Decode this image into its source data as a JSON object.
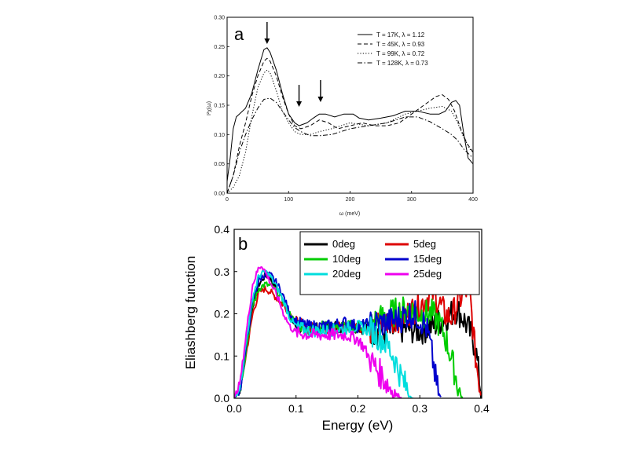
{
  "chart_data": [
    {
      "type": "line",
      "panel_label": "a",
      "xlabel": "ω (meV)",
      "ylabel": "I²χ(ω)",
      "xlim": [
        0,
        400
      ],
      "ylim": [
        0,
        0.3
      ],
      "xticks": [
        0,
        100,
        200,
        300,
        400
      ],
      "yticks": [
        0.0,
        0.05,
        0.1,
        0.15,
        0.2,
        0.25,
        0.3
      ],
      "legend_position": "top-right",
      "arrows_at_x": [
        65,
        117,
        152
      ],
      "series": [
        {
          "name": "T = 17K, λ = 1.12",
          "style": "solid",
          "x": [
            0,
            5,
            10,
            15,
            20,
            30,
            40,
            50,
            60,
            65,
            70,
            80,
            90,
            100,
            110,
            117,
            130,
            140,
            150,
            160,
            175,
            190,
            205,
            215,
            230,
            250,
            270,
            290,
            310,
            330,
            345,
            355,
            365,
            372,
            378,
            385,
            392,
            400
          ],
          "y": [
            0.02,
            0.06,
            0.11,
            0.13,
            0.135,
            0.145,
            0.17,
            0.21,
            0.245,
            0.248,
            0.24,
            0.21,
            0.17,
            0.135,
            0.12,
            0.115,
            0.12,
            0.128,
            0.135,
            0.135,
            0.13,
            0.135,
            0.135,
            0.128,
            0.125,
            0.128,
            0.132,
            0.14,
            0.14,
            0.135,
            0.135,
            0.14,
            0.155,
            0.158,
            0.15,
            0.1,
            0.06,
            0.05
          ]
        },
        {
          "name": "T = 45K, λ = 0.93",
          "style": "dashed",
          "x": [
            0,
            10,
            20,
            30,
            40,
            50,
            60,
            65,
            70,
            80,
            90,
            100,
            110,
            120,
            135,
            150,
            165,
            180,
            200,
            220,
            240,
            260,
            280,
            300,
            320,
            340,
            350,
            360,
            370,
            380,
            390,
            400
          ],
          "y": [
            0.0,
            0.03,
            0.08,
            0.12,
            0.165,
            0.2,
            0.225,
            0.23,
            0.225,
            0.2,
            0.165,
            0.135,
            0.115,
            0.11,
            0.115,
            0.125,
            0.12,
            0.11,
            0.115,
            0.12,
            0.115,
            0.115,
            0.12,
            0.135,
            0.15,
            0.165,
            0.168,
            0.16,
            0.14,
            0.11,
            0.085,
            0.07
          ]
        },
        {
          "name": "T = 99K, λ = 0.72",
          "style": "dotted",
          "x": [
            0,
            10,
            20,
            30,
            40,
            50,
            60,
            65,
            70,
            80,
            90,
            100,
            110,
            120,
            135,
            150,
            170,
            200,
            230,
            260,
            290,
            310,
            330,
            350,
            365,
            375,
            385,
            395,
            400
          ],
          "y": [
            0.0,
            0.01,
            0.03,
            0.07,
            0.13,
            0.18,
            0.205,
            0.21,
            0.205,
            0.175,
            0.14,
            0.12,
            0.105,
            0.1,
            0.1,
            0.105,
            0.11,
            0.12,
            0.115,
            0.12,
            0.135,
            0.14,
            0.145,
            0.148,
            0.14,
            0.12,
            0.095,
            0.075,
            0.07
          ]
        },
        {
          "name": "T = 128K, λ = 0.73",
          "style": "dashdot",
          "x": [
            0,
            10,
            20,
            30,
            40,
            50,
            60,
            70,
            80,
            90,
            100,
            110,
            120,
            135,
            150,
            170,
            200,
            230,
            260,
            290,
            310,
            330,
            350,
            365,
            375,
            385,
            395,
            400
          ],
          "y": [
            0.0,
            0.03,
            0.07,
            0.1,
            0.125,
            0.145,
            0.16,
            0.162,
            0.155,
            0.14,
            0.125,
            0.112,
            0.105,
            0.098,
            0.098,
            0.1,
            0.11,
            0.115,
            0.12,
            0.13,
            0.13,
            0.122,
            0.11,
            0.1,
            0.09,
            0.075,
            0.065,
            0.06
          ]
        }
      ]
    },
    {
      "type": "line",
      "panel_label": "b",
      "xlabel": "Energy (eV)",
      "ylabel": "Eliashberg function",
      "xlim": [
        0.0,
        0.4
      ],
      "ylim": [
        0.0,
        0.4
      ],
      "xticks": [
        0.0,
        0.1,
        0.2,
        0.3,
        0.4
      ],
      "yticks": [
        0.0,
        0.1,
        0.2,
        0.3,
        0.4
      ],
      "legend_position": "top-right",
      "series": [
        {
          "name": "0deg",
          "color": "#000000",
          "x": [
            0,
            0.01,
            0.02,
            0.03,
            0.04,
            0.05,
            0.055,
            0.06,
            0.07,
            0.08,
            0.09,
            0.1,
            0.12,
            0.15,
            0.18,
            0.2,
            0.22,
            0.24,
            0.26,
            0.28,
            0.3,
            0.31,
            0.32,
            0.33,
            0.34,
            0.35,
            0.36,
            0.37,
            0.38,
            0.39,
            0.4
          ],
          "y": [
            0,
            0.02,
            0.12,
            0.22,
            0.27,
            0.29,
            0.29,
            0.28,
            0.26,
            0.23,
            0.19,
            0.17,
            0.16,
            0.17,
            0.17,
            0.17,
            0.16,
            0.155,
            0.16,
            0.165,
            0.16,
            0.165,
            0.17,
            0.18,
            0.19,
            0.2,
            0.21,
            0.19,
            0.16,
            0.12,
            0.0
          ]
        },
        {
          "name": "5deg",
          "color": "#dd0000",
          "x": [
            0,
            0.01,
            0.02,
            0.03,
            0.04,
            0.05,
            0.06,
            0.07,
            0.08,
            0.09,
            0.1,
            0.12,
            0.15,
            0.18,
            0.2,
            0.22,
            0.25,
            0.28,
            0.3,
            0.32,
            0.33,
            0.34,
            0.35,
            0.36,
            0.37,
            0.38,
            0.39,
            0.4
          ],
          "y": [
            0,
            0.02,
            0.11,
            0.2,
            0.25,
            0.26,
            0.25,
            0.235,
            0.22,
            0.2,
            0.18,
            0.165,
            0.165,
            0.17,
            0.17,
            0.165,
            0.18,
            0.2,
            0.22,
            0.25,
            0.23,
            0.2,
            0.19,
            0.22,
            0.25,
            0.26,
            0.1,
            0.0
          ]
        },
        {
          "name": "10deg",
          "color": "#00cc00",
          "x": [
            0,
            0.01,
            0.02,
            0.03,
            0.04,
            0.05,
            0.06,
            0.07,
            0.08,
            0.09,
            0.1,
            0.12,
            0.15,
            0.18,
            0.2,
            0.22,
            0.25,
            0.28,
            0.3,
            0.32,
            0.33,
            0.34,
            0.35,
            0.36,
            0.365,
            0.37
          ],
          "y": [
            0,
            0.02,
            0.12,
            0.22,
            0.26,
            0.27,
            0.265,
            0.25,
            0.23,
            0.2,
            0.175,
            0.165,
            0.17,
            0.17,
            0.17,
            0.175,
            0.2,
            0.21,
            0.2,
            0.2,
            0.18,
            0.15,
            0.1,
            0.04,
            0.01,
            0.0
          ]
        },
        {
          "name": "15deg",
          "color": "#0000cc",
          "x": [
            0,
            0.01,
            0.02,
            0.03,
            0.04,
            0.05,
            0.06,
            0.07,
            0.08,
            0.09,
            0.1,
            0.12,
            0.15,
            0.18,
            0.2,
            0.22,
            0.25,
            0.27,
            0.28,
            0.29,
            0.3,
            0.31,
            0.315,
            0.32,
            0.325,
            0.33,
            0.335
          ],
          "y": [
            0,
            0.02,
            0.13,
            0.23,
            0.28,
            0.295,
            0.29,
            0.27,
            0.24,
            0.2,
            0.18,
            0.17,
            0.17,
            0.18,
            0.17,
            0.175,
            0.18,
            0.19,
            0.2,
            0.2,
            0.19,
            0.17,
            0.14,
            0.1,
            0.05,
            0.01,
            0.0
          ]
        },
        {
          "name": "20deg",
          "color": "#00dddd",
          "x": [
            0,
            0.01,
            0.02,
            0.03,
            0.04,
            0.05,
            0.06,
            0.07,
            0.08,
            0.09,
            0.1,
            0.12,
            0.15,
            0.18,
            0.2,
            0.22,
            0.24,
            0.25,
            0.26,
            0.27,
            0.28,
            0.285,
            0.29
          ],
          "y": [
            0,
            0.03,
            0.14,
            0.24,
            0.29,
            0.3,
            0.285,
            0.26,
            0.23,
            0.19,
            0.17,
            0.16,
            0.16,
            0.165,
            0.17,
            0.16,
            0.14,
            0.12,
            0.09,
            0.05,
            0.02,
            0.005,
            0.0
          ]
        },
        {
          "name": "25deg",
          "color": "#ee00ee",
          "x": [
            0,
            0.01,
            0.02,
            0.03,
            0.04,
            0.045,
            0.05,
            0.06,
            0.07,
            0.08,
            0.09,
            0.1,
            0.12,
            0.15,
            0.18,
            0.2,
            0.21,
            0.22,
            0.23,
            0.24,
            0.25,
            0.26,
            0.27
          ],
          "y": [
            0,
            0.04,
            0.16,
            0.27,
            0.31,
            0.315,
            0.3,
            0.27,
            0.24,
            0.2,
            0.17,
            0.155,
            0.15,
            0.15,
            0.15,
            0.14,
            0.12,
            0.09,
            0.07,
            0.05,
            0.03,
            0.01,
            0.0
          ]
        }
      ]
    }
  ]
}
